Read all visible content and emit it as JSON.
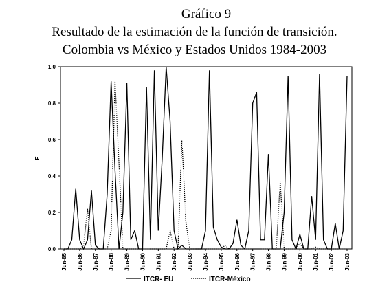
{
  "chart_data": {
    "type": "line",
    "title_lines": [
      "Gráfico 9",
      "Resultado de la estimación de la función de transición.",
      "Colombia vs México y Estados Unidos 1984-2003"
    ],
    "y_label": "F",
    "categories": [
      "Jun-85",
      null,
      null,
      null,
      "Jun-86",
      null,
      null,
      null,
      "Jun-87",
      null,
      null,
      null,
      "Jun-88",
      null,
      null,
      null,
      "Jun-89",
      null,
      null,
      null,
      "Jun-90",
      null,
      null,
      null,
      "Jun-91",
      null,
      null,
      null,
      "Jun-92",
      null,
      null,
      null,
      "Jun-93",
      null,
      null,
      null,
      "Jun-94",
      null,
      null,
      null,
      "Jun-95",
      null,
      null,
      null,
      "Jun-96",
      null,
      null,
      null,
      "Jun-97",
      null,
      null,
      null,
      "Jun-98",
      null,
      null,
      null,
      "Jun-99",
      null,
      null,
      null,
      "Jun-00",
      null,
      null,
      null,
      "Jun-01",
      null,
      null,
      null,
      "Jun-02",
      null,
      null,
      null,
      "Jun-03"
    ],
    "series": [
      {
        "name": "ITCR- EU",
        "color": "#000000",
        "dash": "solid",
        "values": [
          0,
          0,
          0.05,
          0.33,
          0.05,
          0,
          0.05,
          0.32,
          0.02,
          0,
          0,
          0.3,
          0.92,
          0.43,
          0,
          0.2,
          0.91,
          0.05,
          0.1,
          0,
          0,
          0.89,
          0.05,
          0.98,
          0.1,
          0.5,
          1.0,
          0.7,
          0.1,
          0,
          0.02,
          0,
          0,
          0,
          0,
          0,
          0.1,
          0.98,
          0.12,
          0.05,
          0.01,
          0,
          0,
          0.03,
          0.16,
          0.02,
          0,
          0.1,
          0.8,
          0.86,
          0.05,
          0.05,
          0.52,
          0,
          0,
          0,
          0.2,
          0.95,
          0.05,
          0,
          0.08,
          0,
          0,
          0.29,
          0.05,
          0.96,
          0.05,
          0,
          0,
          0.14,
          0,
          0.1,
          0.95
        ]
      },
      {
        "name": "ITCR-México",
        "color": "#000000",
        "dash": "dotted",
        "values": [
          0,
          0,
          0,
          0,
          0,
          0.02,
          0.22,
          0,
          0,
          0,
          0,
          0,
          0.1,
          0.92,
          0.47,
          0,
          0,
          0,
          0,
          0,
          0,
          0,
          0,
          0,
          0,
          0,
          0,
          0.1,
          0,
          0,
          0.6,
          0.15,
          0,
          0,
          0,
          0,
          0,
          0,
          0,
          0,
          0,
          0.02,
          0,
          0,
          0,
          0,
          0,
          0,
          0,
          0,
          0,
          0,
          0,
          0,
          0,
          0.37,
          0,
          0,
          0,
          0,
          0.03,
          0,
          0,
          0,
          0.01,
          0,
          0,
          0,
          0,
          0,
          0,
          0,
          0
        ]
      }
    ],
    "ylim": [
      0,
      1.0
    ],
    "yticks": [
      {
        "value": 0,
        "label": "0,0"
      },
      {
        "value": 0.2,
        "label": "0,2"
      },
      {
        "value": 0.4,
        "label": "0,4"
      },
      {
        "value": 0.6,
        "label": "0,6"
      },
      {
        "value": 0.8,
        "label": "0,8"
      },
      {
        "value": 1.0,
        "label": "1,0"
      }
    ],
    "grid": false
  }
}
